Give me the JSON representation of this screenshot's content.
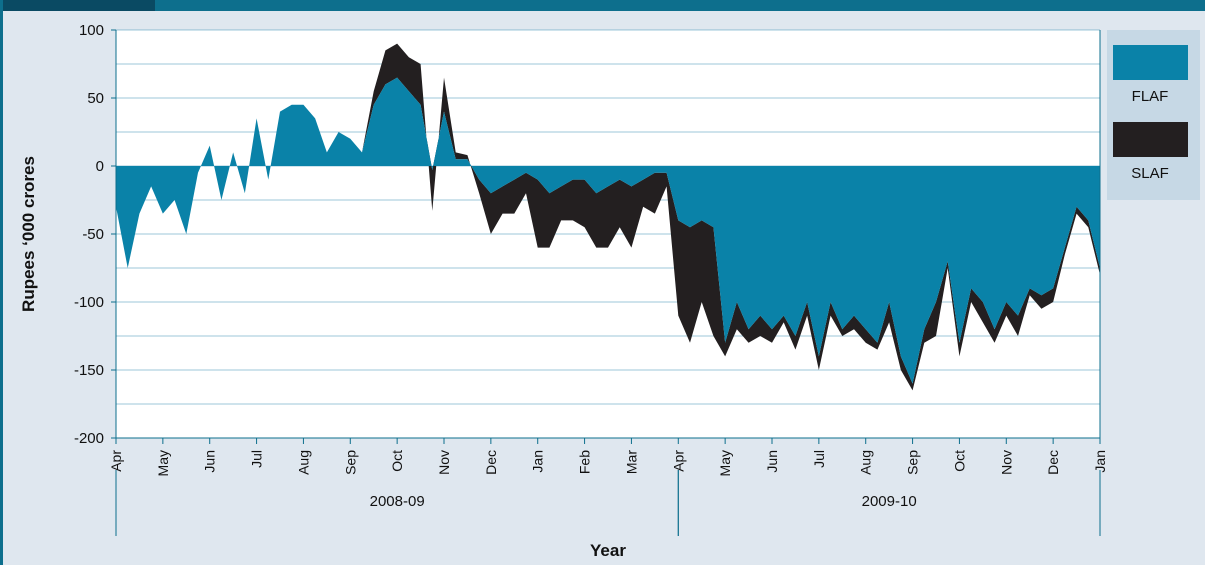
{
  "chart_data": {
    "type": "stacked_area",
    "ylabel": "Rupees ‘000 crores",
    "xlabel": "Year",
    "x": [
      0,
      0.25,
      0.5,
      0.75,
      1,
      1.25,
      1.5,
      1.75,
      2,
      2.25,
      2.5,
      2.75,
      3,
      3.25,
      3.5,
      3.75,
      4,
      4.25,
      4.5,
      4.75,
      5,
      5.25,
      5.5,
      5.75,
      6,
      6.25,
      6.5,
      6.75,
      7,
      7.25,
      7.5,
      7.75,
      8,
      8.25,
      8.5,
      8.75,
      9,
      9.25,
      9.5,
      9.75,
      10,
      10.25,
      10.5,
      10.75,
      11,
      11.25,
      11.5,
      11.75,
      12,
      12.25,
      12.5,
      12.75,
      13,
      13.25,
      13.5,
      13.75,
      14,
      14.25,
      14.5,
      14.75,
      15,
      15.25,
      15.5,
      15.75,
      16,
      16.25,
      16.5,
      16.75,
      17,
      17.25,
      17.5,
      17.75,
      18,
      18.25,
      18.5,
      18.75,
      19,
      19.25,
      19.5,
      19.75,
      20,
      20.25,
      20.5,
      20.75,
      21
    ],
    "series": [
      {
        "name": "FLAF",
        "color": "#0a82a8",
        "values": [
          -30,
          -75,
          -35,
          -15,
          -35,
          -25,
          -50,
          -5,
          15,
          -25,
          10,
          -20,
          35,
          -10,
          40,
          45,
          45,
          35,
          10,
          25,
          20,
          10,
          45,
          60,
          65,
          55,
          45,
          -3,
          40,
          5,
          5,
          -10,
          -20,
          -15,
          -10,
          -5,
          -10,
          -20,
          -15,
          -10,
          -10,
          -20,
          -15,
          -10,
          -15,
          -10,
          -5,
          -5,
          -40,
          -45,
          -40,
          -45,
          -130,
          -100,
          -120,
          -110,
          -120,
          -110,
          -125,
          -100,
          -140,
          -100,
          -120,
          -110,
          -120,
          -130,
          -100,
          -140,
          -160,
          -120,
          -100,
          -70,
          -130,
          -90,
          -100,
          -120,
          -100,
          -110,
          -90,
          -95,
          -90,
          -60,
          -30,
          -40,
          -75
        ]
      },
      {
        "name": "SLAF",
        "color": "#231f20",
        "values": [
          0,
          0,
          0,
          0,
          0,
          0,
          0,
          0,
          0,
          0,
          0,
          0,
          0,
          0,
          0,
          0,
          0,
          0,
          0,
          0,
          0,
          0,
          10,
          25,
          25,
          25,
          30,
          -30,
          25,
          5,
          3,
          -10,
          -30,
          -20,
          -25,
          -15,
          -50,
          -40,
          -25,
          -30,
          -35,
          -40,
          -45,
          -35,
          -45,
          -20,
          -30,
          -10,
          -70,
          -85,
          -60,
          -80,
          -10,
          -20,
          -10,
          -15,
          -10,
          -5,
          -10,
          -10,
          -10,
          -10,
          -5,
          -10,
          -10,
          -5,
          -15,
          -10,
          -5,
          -10,
          -25,
          -5,
          -10,
          -10,
          -15,
          -10,
          -10,
          -15,
          -5,
          -10,
          -10,
          -5,
          -5,
          -5,
          -5
        ]
      }
    ],
    "xlim": [
      0,
      21
    ],
    "xticks": [
      {
        "value": 0,
        "label": "Apr"
      },
      {
        "value": 1,
        "label": "May"
      },
      {
        "value": 2,
        "label": "Jun"
      },
      {
        "value": 3,
        "label": "Jul"
      },
      {
        "value": 4,
        "label": "Aug"
      },
      {
        "value": 5,
        "label": "Sep"
      },
      {
        "value": 6,
        "label": "Oct"
      },
      {
        "value": 7,
        "label": "Nov"
      },
      {
        "value": 8,
        "label": "Dec"
      },
      {
        "value": 9,
        "label": "Jan"
      },
      {
        "value": 10,
        "label": "Feb"
      },
      {
        "value": 11,
        "label": "Mar"
      },
      {
        "value": 12,
        "label": "Apr"
      },
      {
        "value": 13,
        "label": "May"
      },
      {
        "value": 14,
        "label": "Jun"
      },
      {
        "value": 15,
        "label": "Jul"
      },
      {
        "value": 16,
        "label": "Aug"
      },
      {
        "value": 17,
        "label": "Sep"
      },
      {
        "value": 18,
        "label": "Oct"
      },
      {
        "value": 19,
        "label": "Nov"
      },
      {
        "value": 20,
        "label": "Dec"
      },
      {
        "value": 21,
        "label": "Jan"
      }
    ],
    "x_groups": [
      {
        "label": "2008-09",
        "range": [
          0,
          12
        ]
      },
      {
        "label": "2009-10",
        "range": [
          12,
          21
        ]
      }
    ],
    "ylim": [
      -200,
      100
    ],
    "yticks": [
      -200,
      -150,
      -100,
      -50,
      0,
      50,
      100
    ],
    "minor_yticks": [
      -175,
      -125,
      -75,
      -25,
      25,
      75
    ],
    "grid": true,
    "legend": "right"
  }
}
